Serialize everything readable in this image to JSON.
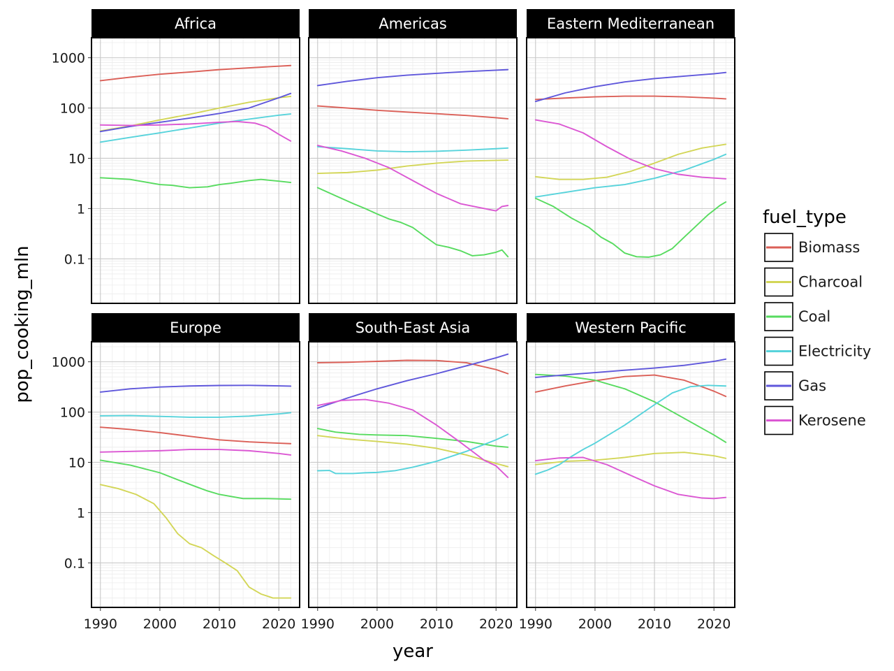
{
  "chart_data": {
    "type": "line",
    "facet_by": "region",
    "xlabel": "year",
    "ylabel": "pop_cooking_mln",
    "y_scale": "log10",
    "ylim": [
      0.013,
      2500
    ],
    "y_ticks": [
      0.1,
      1,
      10,
      100,
      1000
    ],
    "y_tick_labels": [
      "0.1",
      "1",
      "10",
      "100",
      "1000"
    ],
    "xlim": [
      1988.5,
      2023.5
    ],
    "x_ticks": [
      1990,
      2000,
      2010,
      2020
    ],
    "x_tick_labels": [
      "1990",
      "2000",
      "2010",
      "2020"
    ],
    "grid": true,
    "legend": {
      "title": "fuel_type",
      "position": "right",
      "entries": [
        {
          "name": "Biomass",
          "color": "#db5f57"
        },
        {
          "name": "Charcoal",
          "color": "#d3d657"
        },
        {
          "name": "Coal",
          "color": "#57db5f"
        },
        {
          "name": "Electricity",
          "color": "#57d3db"
        },
        {
          "name": "Gas",
          "color": "#5f57db"
        },
        {
          "name": "Kerosene",
          "color": "#db57d3"
        }
      ]
    },
    "panels": [
      {
        "title": "Africa",
        "series": [
          {
            "name": "Biomass",
            "x": [
              1990,
              1995,
              2000,
              2005,
              2010,
              2015,
              2020,
              2022
            ],
            "y": [
              350,
              410,
              470,
              520,
              580,
              630,
              680,
              700
            ]
          },
          {
            "name": "Charcoal",
            "x": [
              1990,
              1995,
              2000,
              2005,
              2010,
              2015,
              2020,
              2022
            ],
            "y": [
              35,
              44,
              58,
              75,
              100,
              130,
              160,
              170
            ]
          },
          {
            "name": "Coal",
            "x": [
              1990,
              1995,
              2000,
              2002,
              2005,
              2008,
              2010,
              2012,
              2015,
              2017,
              2020,
              2022
            ],
            "y": [
              4.1,
              3.8,
              3.0,
              2.9,
              2.6,
              2.7,
              3.0,
              3.2,
              3.6,
              3.8,
              3.5,
              3.3
            ]
          },
          {
            "name": "Electricity",
            "x": [
              1990,
              1995,
              2000,
              2005,
              2010,
              2015,
              2020,
              2022
            ],
            "y": [
              21,
              26,
              32,
              40,
              50,
              60,
              72,
              76
            ]
          },
          {
            "name": "Gas",
            "x": [
              1990,
              1995,
              2000,
              2005,
              2010,
              2015,
              2020,
              2022
            ],
            "y": [
              34,
              43,
              52,
              63,
              78,
              100,
              160,
              195
            ]
          },
          {
            "name": "Kerosene",
            "x": [
              1990,
              1995,
              2000,
              2005,
              2010,
              2013,
              2016,
              2018,
              2020,
              2022
            ],
            "y": [
              46,
              45,
              46,
              48,
              52,
              54,
              50,
              42,
              30,
              22
            ]
          }
        ]
      },
      {
        "title": "Americas",
        "series": [
          {
            "name": "Biomass",
            "x": [
              1990,
              1995,
              2000,
              2005,
              2010,
              2015,
              2020,
              2022
            ],
            "y": [
              110,
              100,
              90,
              83,
              77,
              71,
              64,
              61
            ]
          },
          {
            "name": "Charcoal",
            "x": [
              1990,
              1995,
              2000,
              2005,
              2010,
              2015,
              2020,
              2022
            ],
            "y": [
              5,
              5.2,
              5.8,
              7.0,
              8.0,
              8.8,
              9.1,
              9.2
            ]
          },
          {
            "name": "Coal",
            "x": [
              1990,
              1993,
              1996,
              1998,
              2000,
              2002,
              2004,
              2006,
              2008,
              2010,
              2012,
              2014,
              2016,
              2018,
              2020,
              2021,
              2022
            ],
            "y": [
              2.6,
              1.8,
              1.25,
              1.0,
              0.78,
              0.62,
              0.53,
              0.42,
              0.28,
              0.19,
              0.17,
              0.145,
              0.115,
              0.12,
              0.135,
              0.15,
              0.11
            ]
          },
          {
            "name": "Electricity",
            "x": [
              1990,
              1995,
              2000,
              2005,
              2010,
              2015,
              2020,
              2022
            ],
            "y": [
              17,
              15.5,
              14,
              13.5,
              13.8,
              14.5,
              15.5,
              16
            ]
          },
          {
            "name": "Gas",
            "x": [
              1990,
              1995,
              2000,
              2005,
              2010,
              2015,
              2020,
              2022
            ],
            "y": [
              280,
              340,
              400,
              450,
              490,
              530,
              565,
              580
            ]
          },
          {
            "name": "Kerosene",
            "x": [
              1990,
              1994,
              1998,
              2002,
              2006,
              2010,
              2014,
              2018,
              2020,
              2021,
              2022
            ],
            "y": [
              18,
              14,
              10,
              6.5,
              3.6,
              2.0,
              1.25,
              1.0,
              0.9,
              1.1,
              1.15
            ]
          }
        ]
      },
      {
        "title": "Eastern Mediterranean",
        "series": [
          {
            "name": "Biomass",
            "x": [
              1990,
              1995,
              2000,
              2005,
              2010,
              2015,
              2020,
              2022
            ],
            "y": [
              148,
              158,
              167,
              172,
              172,
              167,
              157,
              152
            ]
          },
          {
            "name": "Charcoal",
            "x": [
              1990,
              1994,
              1998,
              2002,
              2006,
              2010,
              2014,
              2018,
              2022
            ],
            "y": [
              4.3,
              3.8,
              3.8,
              4.2,
              5.5,
              8.0,
              12,
              16,
              19
            ]
          },
          {
            "name": "Coal",
            "x": [
              1990,
              1993,
              1996,
              1999,
              2001,
              2003,
              2005,
              2007,
              2009,
              2011,
              2013,
              2015,
              2017,
              2019,
              2021,
              2022
            ],
            "y": [
              1.6,
              1.1,
              0.65,
              0.42,
              0.27,
              0.2,
              0.13,
              0.11,
              0.108,
              0.12,
              0.16,
              0.27,
              0.45,
              0.75,
              1.15,
              1.35
            ]
          },
          {
            "name": "Electricity",
            "x": [
              1990,
              1995,
              2000,
              2005,
              2010,
              2015,
              2020,
              2022
            ],
            "y": [
              1.7,
              2.1,
              2.6,
              3.0,
              4.0,
              5.8,
              9.5,
              12
            ]
          },
          {
            "name": "Gas",
            "x": [
              1990,
              1995,
              2000,
              2005,
              2010,
              2015,
              2020,
              2022
            ],
            "y": [
              135,
              200,
              265,
              330,
              385,
              430,
              480,
              510
            ]
          },
          {
            "name": "Kerosene",
            "x": [
              1990,
              1994,
              1998,
              2002,
              2006,
              2010,
              2014,
              2018,
              2022
            ],
            "y": [
              58,
              48,
              32,
              17,
              9.5,
              6.2,
              4.8,
              4.2,
              3.9
            ]
          }
        ]
      },
      {
        "title": "Europe",
        "series": [
          {
            "name": "Biomass",
            "x": [
              1990,
              1995,
              2000,
              2005,
              2010,
              2015,
              2020,
              2022
            ],
            "y": [
              50,
              45,
              39,
              33,
              28,
              25.5,
              24,
              23.5
            ]
          },
          {
            "name": "Charcoal",
            "x": [
              1990,
              1993,
              1996,
              1999,
              2001,
              2003,
              2005,
              2007,
              2009,
              2011,
              2013,
              2015,
              2017,
              2019,
              2022
            ],
            "y": [
              3.6,
              3.0,
              2.3,
              1.5,
              0.8,
              0.38,
              0.24,
              0.2,
              0.14,
              0.1,
              0.07,
              0.033,
              0.024,
              0.02,
              0.02
            ]
          },
          {
            "name": "Coal",
            "x": [
              1990,
              1995,
              2000,
              2003,
              2006,
              2008,
              2010,
              2014,
              2018,
              2022
            ],
            "y": [
              11,
              8.8,
              6.2,
              4.5,
              3.3,
              2.7,
              2.3,
              1.9,
              1.9,
              1.85
            ]
          },
          {
            "name": "Electricity",
            "x": [
              1990,
              1995,
              2000,
              2005,
              2010,
              2015,
              2020,
              2022
            ],
            "y": [
              84,
              85,
              82,
              79,
              79,
              83,
              92,
              97
            ]
          },
          {
            "name": "Gas",
            "x": [
              1990,
              1995,
              2000,
              2005,
              2010,
              2015,
              2020,
              2022
            ],
            "y": [
              250,
              290,
              315,
              330,
              338,
              340,
              332,
              328
            ]
          },
          {
            "name": "Kerosene",
            "x": [
              1990,
              1995,
              2000,
              2005,
              2010,
              2015,
              2020,
              2022
            ],
            "y": [
              16,
              16.5,
              17,
              18,
              18,
              17,
              15,
              14
            ]
          }
        ]
      },
      {
        "title": "South-East Asia",
        "series": [
          {
            "name": "Biomass",
            "x": [
              1990,
              1995,
              2000,
              2005,
              2010,
              2015,
              2020,
              2022
            ],
            "y": [
              960,
              980,
              1020,
              1070,
              1060,
              960,
              700,
              580
            ]
          },
          {
            "name": "Charcoal",
            "x": [
              1990,
              1995,
              2000,
              2005,
              2010,
              2015,
              2020,
              2022
            ],
            "y": [
              34,
              29,
              26,
              23,
              19,
              14,
              9.5,
              8.2
            ]
          },
          {
            "name": "Coal",
            "x": [
              1990,
              1993,
              1997,
              2000,
              2005,
              2010,
              2015,
              2020,
              2022
            ],
            "y": [
              47,
              40,
              36,
              35,
              34,
              30,
              26,
              21,
              20
            ]
          },
          {
            "name": "Electricity",
            "x": [
              1990,
              1992,
              1993,
              1996,
              1998,
              2000,
              2003,
              2006,
              2010,
              2015,
              2020,
              2022
            ],
            "y": [
              6.8,
              6.9,
              6.0,
              6.0,
              6.2,
              6.3,
              6.8,
              8.0,
              10.5,
              16.5,
              28,
              36
            ]
          },
          {
            "name": "Gas",
            "x": [
              1990,
              1995,
              2000,
              2005,
              2010,
              2015,
              2020,
              2022
            ],
            "y": [
              120,
              190,
              290,
              420,
              580,
              830,
              1200,
              1420
            ]
          },
          {
            "name": "Kerosene",
            "x": [
              1990,
              1994,
              1998,
              2002,
              2006,
              2010,
              2014,
              2018,
              2020,
              2022
            ],
            "y": [
              135,
              170,
              178,
              150,
              110,
              55,
              25,
              11,
              8.5,
              5.0
            ]
          }
        ]
      },
      {
        "title": "Western Pacific",
        "series": [
          {
            "name": "Biomass",
            "x": [
              1990,
              1995,
              2000,
              2005,
              2010,
              2015,
              2020,
              2022
            ],
            "y": [
              250,
              330,
              420,
              510,
              545,
              430,
              260,
              205
            ]
          },
          {
            "name": "Charcoal",
            "x": [
              1990,
              1995,
              2000,
              2005,
              2010,
              2015,
              2020,
              2022
            ],
            "y": [
              9,
              10.5,
              11,
              12.5,
              15,
              15.8,
              13.5,
              12
            ]
          },
          {
            "name": "Coal",
            "x": [
              1990,
              1995,
              2000,
              2005,
              2010,
              2015,
              2020,
              2022
            ],
            "y": [
              560,
              520,
              430,
              290,
              160,
              75,
              35,
              25
            ]
          },
          {
            "name": "Electricity",
            "x": [
              1990,
              1992,
              1994,
              1996,
              1998,
              2000,
              2005,
              2010,
              2013,
              2016,
              2019,
              2022
            ],
            "y": [
              5.8,
              7.0,
              9.0,
              13,
              18,
              24,
              55,
              140,
              240,
              320,
              340,
              330
            ]
          },
          {
            "name": "Gas",
            "x": [
              1990,
              1995,
              2000,
              2005,
              2010,
              2015,
              2020,
              2022
            ],
            "y": [
              490,
              550,
              610,
              680,
              750,
              850,
              1020,
              1130
            ]
          },
          {
            "name": "Kerosene",
            "x": [
              1990,
              1994,
              1998,
              2002,
              2006,
              2010,
              2014,
              2018,
              2020,
              2022
            ],
            "y": [
              10.8,
              12.2,
              12.5,
              9.0,
              5.5,
              3.4,
              2.3,
              1.95,
              1.9,
              2.0
            ]
          }
        ]
      }
    ]
  }
}
